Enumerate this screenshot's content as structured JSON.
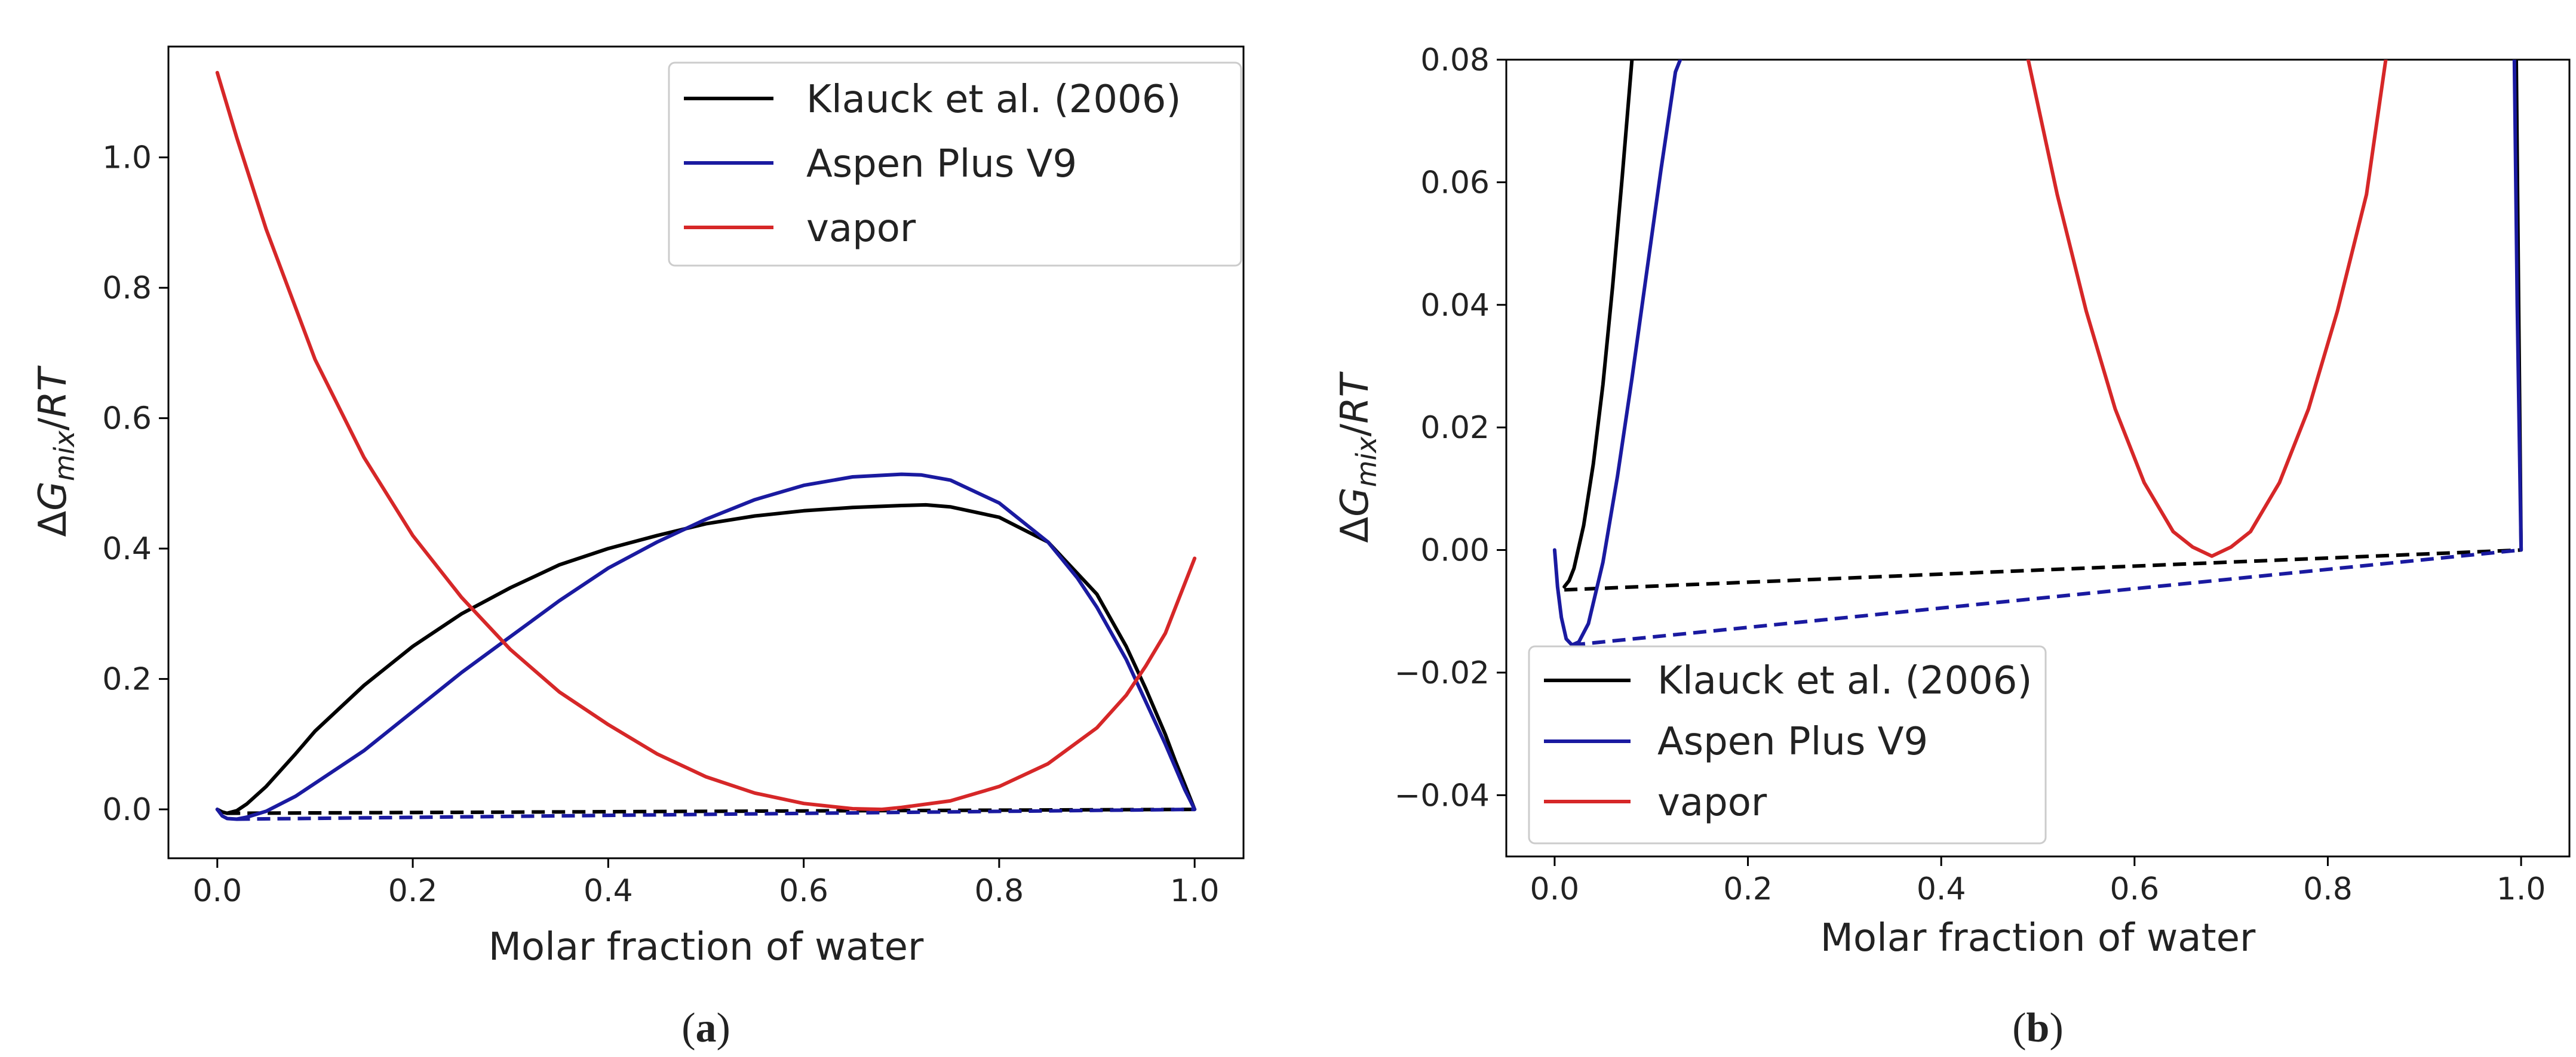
{
  "chart_data": [
    {
      "type": "line",
      "panel_label": "(a)",
      "panel_letter": "a",
      "xlabel": "Molar fraction of water",
      "ylabel": "ΔG_mix/RT",
      "xlim": [
        -0.05,
        1.05
      ],
      "ylim": [
        -0.075,
        1.17
      ],
      "xticks": [
        0.0,
        0.2,
        0.4,
        0.6,
        0.8,
        1.0
      ],
      "xtick_labels": [
        "0.0",
        "0.2",
        "0.4",
        "0.6",
        "0.8",
        "1.0"
      ],
      "yticks": [
        0.0,
        0.2,
        0.4,
        0.6,
        0.8,
        1.0
      ],
      "ytick_labels": [
        "0.0",
        "0.2",
        "0.4",
        "0.6",
        "0.8",
        "1.0"
      ],
      "legend_location": "top-right",
      "legend_order": [
        "klauck",
        "aspen",
        "vapor"
      ],
      "series": [
        {
          "key": "klauck",
          "name": "Klauck et al. (2006)",
          "color": "#000000",
          "style": "solid",
          "x": [
            0,
            0.005,
            0.01,
            0.02,
            0.03,
            0.05,
            0.08,
            0.1,
            0.15,
            0.2,
            0.25,
            0.3,
            0.35,
            0.4,
            0.45,
            0.5,
            0.55,
            0.6,
            0.65,
            0.7,
            0.725,
            0.75,
            0.8,
            0.85,
            0.9,
            0.93,
            0.95,
            0.97,
            0.98,
            0.99,
            1.0
          ],
          "y": [
            0,
            -0.004,
            -0.006,
            -0.002,
            0.008,
            0.035,
            0.085,
            0.12,
            0.19,
            0.25,
            0.3,
            0.34,
            0.375,
            0.4,
            0.42,
            0.438,
            0.45,
            0.458,
            0.463,
            0.466,
            0.467,
            0.464,
            0.448,
            0.41,
            0.33,
            0.25,
            0.185,
            0.115,
            0.075,
            0.038,
            0
          ]
        },
        {
          "key": "klauck_tangent",
          "name": "",
          "color": "#000000",
          "style": "dashed",
          "x": [
            0.01,
            1.0
          ],
          "y": [
            -0.006,
            0
          ]
        },
        {
          "key": "aspen",
          "name": "Aspen Plus V9",
          "color": "#1a1aa0",
          "style": "solid",
          "x": [
            0,
            0.005,
            0.01,
            0.02,
            0.03,
            0.05,
            0.08,
            0.1,
            0.15,
            0.2,
            0.25,
            0.3,
            0.35,
            0.4,
            0.45,
            0.5,
            0.55,
            0.6,
            0.65,
            0.7,
            0.72,
            0.75,
            0.8,
            0.85,
            0.88,
            0.9,
            0.93,
            0.95,
            0.97,
            0.98,
            0.99,
            1.0
          ],
          "y": [
            0,
            -0.01,
            -0.014,
            -0.015,
            -0.012,
            -0.003,
            0.02,
            0.04,
            0.09,
            0.15,
            0.21,
            0.265,
            0.32,
            0.37,
            0.41,
            0.445,
            0.475,
            0.497,
            0.51,
            0.514,
            0.513,
            0.505,
            0.47,
            0.41,
            0.355,
            0.31,
            0.23,
            0.165,
            0.1,
            0.065,
            0.03,
            0
          ]
        },
        {
          "key": "aspen_tangent",
          "name": "",
          "color": "#1a1aa0",
          "style": "dashed",
          "x": [
            0.02,
            1.0
          ],
          "y": [
            -0.015,
            0
          ]
        },
        {
          "key": "vapor",
          "name": "vapor",
          "color": "#d62728",
          "style": "solid",
          "x": [
            0,
            0.02,
            0.05,
            0.1,
            0.15,
            0.2,
            0.25,
            0.3,
            0.35,
            0.4,
            0.45,
            0.5,
            0.55,
            0.6,
            0.65,
            0.68,
            0.7,
            0.75,
            0.8,
            0.85,
            0.9,
            0.93,
            0.95,
            0.97,
            1.0
          ],
          "y": [
            1.13,
            1.03,
            0.89,
            0.69,
            0.54,
            0.42,
            0.325,
            0.245,
            0.18,
            0.13,
            0.085,
            0.05,
            0.025,
            0.009,
            0.001,
            0,
            0.003,
            0.013,
            0.035,
            0.07,
            0.125,
            0.175,
            0.22,
            0.27,
            0.385
          ]
        }
      ]
    },
    {
      "type": "line",
      "panel_label": "(b)",
      "panel_letter": "b",
      "xlabel": "Molar fraction of water",
      "ylabel": "ΔG_mix/RT",
      "xlim": [
        -0.05,
        1.05
      ],
      "ylim": [
        -0.05,
        0.08
      ],
      "xticks": [
        0.0,
        0.2,
        0.4,
        0.6,
        0.8,
        1.0
      ],
      "xtick_labels": [
        "0.0",
        "0.2",
        "0.4",
        "0.6",
        "0.8",
        "1.0"
      ],
      "yticks": [
        -0.04,
        -0.02,
        0.0,
        0.02,
        0.04,
        0.06,
        0.08
      ],
      "ytick_labels": [
        "−0.04",
        "−0.02",
        "0.00",
        "0.02",
        "0.04",
        "0.06",
        "0.08"
      ],
      "legend_location": "bottom-left",
      "legend_order": [
        "klauck",
        "aspen",
        "vapor"
      ],
      "series": [
        {
          "key": "klauck",
          "name": "Klauck et al. (2006)",
          "color": "#000000",
          "style": "solid",
          "x": [
            0.01,
            0.015,
            0.02,
            0.03,
            0.04,
            0.05,
            0.06,
            0.07,
            0.08
          ],
          "y": [
            -0.006,
            -0.005,
            -0.003,
            0.004,
            0.014,
            0.027,
            0.043,
            0.061,
            0.08
          ]
        },
        {
          "key": "klauck_right",
          "name": "",
          "color": "#000000",
          "style": "solid",
          "x": [
            0.995,
            0.9975,
            1.0
          ],
          "y": [
            0.08,
            0.04,
            0
          ]
        },
        {
          "key": "klauck_tangent",
          "name": "",
          "color": "#000000",
          "style": "dashed",
          "x": [
            0.01,
            1.0
          ],
          "y": [
            -0.0065,
            0
          ]
        },
        {
          "key": "aspen",
          "name": "Aspen Plus V9",
          "color": "#1a1aa0",
          "style": "solid",
          "x": [
            0,
            0.003,
            0.007,
            0.012,
            0.018,
            0.025,
            0.035,
            0.05,
            0.065,
            0.08,
            0.095,
            0.11,
            0.125,
            0.13
          ],
          "y": [
            0,
            -0.006,
            -0.011,
            -0.0145,
            -0.0155,
            -0.015,
            -0.012,
            -0.002,
            0.012,
            0.028,
            0.045,
            0.062,
            0.078,
            0.08
          ]
        },
        {
          "key": "aspen_right",
          "name": "",
          "color": "#1a1aa0",
          "style": "solid",
          "x": [
            0.993,
            0.996,
            1.0
          ],
          "y": [
            0.08,
            0.04,
            0
          ]
        },
        {
          "key": "aspen_tangent",
          "name": "",
          "color": "#1a1aa0",
          "style": "dashed",
          "x": [
            0.018,
            1.0
          ],
          "y": [
            -0.0155,
            0
          ]
        },
        {
          "key": "vapor",
          "name": "vapor",
          "color": "#d62728",
          "style": "solid",
          "x": [
            0.49,
            0.52,
            0.55,
            0.58,
            0.61,
            0.64,
            0.66,
            0.68,
            0.7,
            0.72,
            0.75,
            0.78,
            0.81,
            0.84,
            0.86
          ],
          "y": [
            0.08,
            0.058,
            0.039,
            0.023,
            0.011,
            0.003,
            0.0005,
            -0.001,
            0.0005,
            0.003,
            0.011,
            0.023,
            0.039,
            0.058,
            0.08
          ]
        }
      ]
    }
  ]
}
